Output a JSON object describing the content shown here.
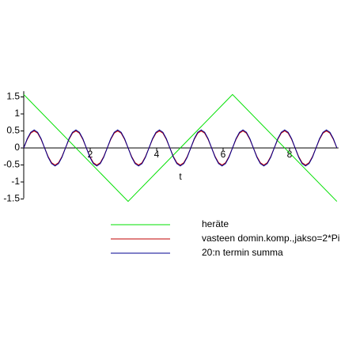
{
  "chart_data": {
    "type": "line",
    "x_label": "t",
    "xlim": [
      0,
      9.4248
    ],
    "ylim": [
      -1.6,
      1.6
    ],
    "xticks": [
      2,
      4,
      6,
      8
    ],
    "yticks": [
      1.5,
      1,
      0.5,
      0,
      -0.5,
      -1,
      -1.5
    ],
    "x": [
      0,
      0.1047,
      0.2094,
      0.3142,
      0.4189,
      0.5236,
      0.6283,
      0.733,
      0.8378,
      0.9425,
      1.0472,
      1.1519,
      1.2566,
      1.3614,
      1.4661,
      1.5708,
      1.6755,
      1.7802,
      1.885,
      1.9897,
      2.0944,
      2.1991,
      2.3038,
      2.4086,
      2.5133,
      2.618,
      2.7227,
      2.8274,
      2.9322,
      3.0369,
      3.1416,
      3.2463,
      3.351,
      3.4558,
      3.5605,
      3.6652,
      3.7699,
      3.8746,
      3.9794,
      4.0841,
      4.1888,
      4.2935,
      4.3982,
      4.5029,
      4.6077,
      4.7124,
      4.8171,
      4.9218,
      5.0265,
      5.1313,
      5.236,
      5.3407,
      5.4454,
      5.5501,
      5.6549,
      5.7596,
      5.8643,
      5.969,
      6.0737,
      6.1785,
      6.2832,
      6.3879,
      6.4926,
      6.5973,
      6.7021,
      6.8068,
      6.9115,
      7.0162,
      7.1209,
      7.2257,
      7.3304,
      7.4351,
      7.5398,
      7.6445,
      7.7493,
      7.854,
      7.9587,
      8.0634,
      8.1681,
      8.2729,
      8.3776,
      8.4823,
      8.587,
      8.6917,
      8.7965,
      8.9012,
      9.0059,
      9.1106,
      9.2153,
      9.3201,
      9.4248
    ],
    "series": [
      {
        "name": "heräte",
        "color": "#00e000",
        "x": [
          0,
          3.1416,
          6.2832,
          9.4248
        ],
        "values": [
          1.5708,
          -1.5708,
          1.5708,
          -1.5708
        ]
      },
      {
        "name": "vasteen domin.komp.,jakso=2*Pi",
        "color": "#c00000",
        "values": [
          0,
          0.25,
          0.433,
          0.5,
          0.433,
          0.25,
          0,
          -0.25,
          -0.433,
          -0.5,
          -0.433,
          -0.25,
          0,
          0.25,
          0.433,
          0.5,
          0.433,
          0.25,
          0,
          -0.25,
          -0.433,
          -0.5,
          -0.433,
          -0.25,
          0,
          0.25,
          0.433,
          0.5,
          0.433,
          0.25,
          0,
          -0.25,
          -0.433,
          -0.5,
          -0.433,
          -0.25,
          0,
          0.25,
          0.433,
          0.5,
          0.433,
          0.25,
          0,
          -0.25,
          -0.433,
          -0.5,
          -0.433,
          -0.25,
          0,
          0.25,
          0.433,
          0.5,
          0.433,
          0.25,
          0,
          -0.25,
          -0.433,
          -0.5,
          -0.433,
          -0.25,
          0,
          0.25,
          0.433,
          0.5,
          0.433,
          0.25,
          0,
          -0.25,
          -0.433,
          -0.5,
          -0.433,
          -0.25,
          0,
          0.25,
          0.433,
          0.5,
          0.433,
          0.25,
          0,
          -0.25,
          -0.433,
          -0.5,
          -0.433,
          -0.25,
          0,
          0.25,
          0.433,
          0.5,
          0.433,
          0.25,
          0
        ]
      },
      {
        "name": "20:n termin summa",
        "color": "#000090",
        "values": [
          0,
          0.27,
          0.46,
          0.53,
          0.46,
          0.27,
          0,
          -0.27,
          -0.46,
          -0.53,
          -0.46,
          -0.27,
          0,
          0.27,
          0.46,
          0.53,
          0.46,
          0.27,
          0,
          -0.27,
          -0.46,
          -0.53,
          -0.46,
          -0.27,
          0,
          0.27,
          0.46,
          0.53,
          0.46,
          0.27,
          0,
          -0.27,
          -0.46,
          -0.53,
          -0.46,
          -0.27,
          0,
          0.27,
          0.46,
          0.53,
          0.46,
          0.27,
          0,
          -0.27,
          -0.46,
          -0.53,
          -0.46,
          -0.27,
          0,
          0.27,
          0.46,
          0.53,
          0.46,
          0.27,
          0,
          -0.27,
          -0.46,
          -0.53,
          -0.46,
          -0.27,
          0,
          0.27,
          0.46,
          0.53,
          0.46,
          0.27,
          0,
          -0.27,
          -0.46,
          -0.53,
          -0.46,
          -0.27,
          0,
          0.27,
          0.46,
          0.53,
          0.46,
          0.27,
          0,
          -0.27,
          -0.46,
          -0.53,
          -0.46,
          -0.27,
          0,
          0.27,
          0.46,
          0.53,
          0.46,
          0.27,
          0
        ]
      }
    ]
  }
}
